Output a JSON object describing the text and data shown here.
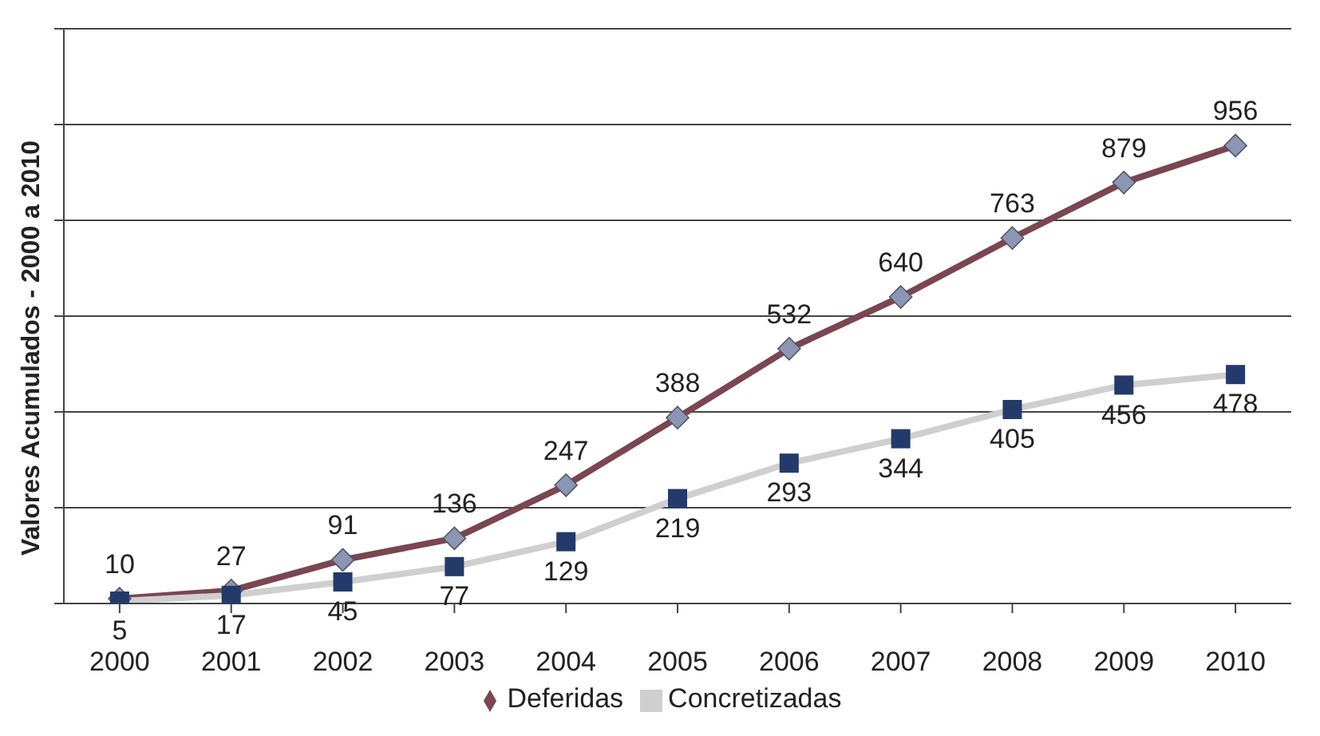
{
  "chart_data": {
    "type": "line",
    "ylabel": "Valores Acumulados - 2000 a 2010",
    "categories": [
      "2000",
      "2001",
      "2002",
      "2003",
      "2004",
      "2005",
      "2006",
      "2007",
      "2008",
      "2009",
      "2010"
    ],
    "series": [
      {
        "name": "Deferidas",
        "color": "#7a4650",
        "marker": "diamond",
        "values": [
          10,
          27,
          91,
          136,
          247,
          388,
          532,
          640,
          763,
          879,
          956
        ]
      },
      {
        "name": "Concretizadas",
        "color": "#cfcfcf",
        "marker": "square",
        "values": [
          5,
          17,
          45,
          77,
          129,
          219,
          293,
          344,
          405,
          456,
          478
        ]
      }
    ],
    "ylim": [
      0,
      1200
    ],
    "yticks": [
      {
        "value": 0,
        "label": null
      },
      {
        "value": 200,
        "label": null
      },
      {
        "value": 400,
        "label": null
      },
      {
        "value": 600,
        "label": null
      },
      {
        "value": 800,
        "label": null
      },
      {
        "value": 1000,
        "label": null
      },
      {
        "value": 1200,
        "label": null
      }
    ],
    "tick_labels": "x",
    "grid": "y",
    "data_labels": true,
    "legend": "bottom"
  }
}
